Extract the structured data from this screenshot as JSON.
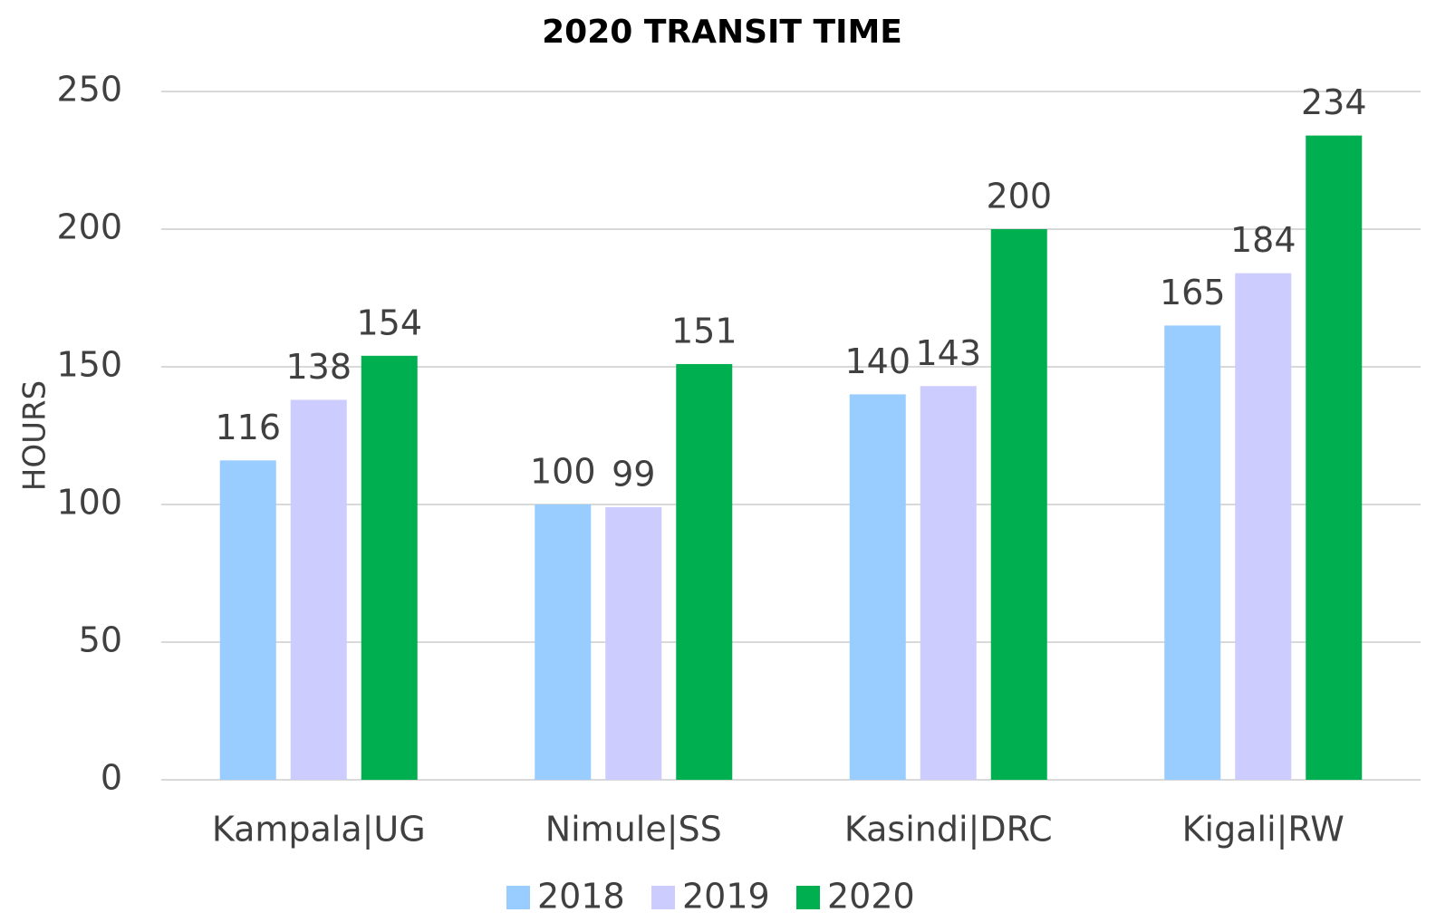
{
  "chart_data": {
    "type": "bar",
    "title": "2020 TRANSIT TIME",
    "y_label": "HOURS",
    "categories": [
      "Kampala|UG",
      "Nimule|SS",
      "Kasindi|DRC",
      "Kigali|RW"
    ],
    "series": [
      {
        "name": "2018",
        "color": "#99ccff",
        "values": [
          116,
          100,
          140,
          165
        ]
      },
      {
        "name": "2019",
        "color": "#ccccff",
        "values": [
          138,
          99,
          143,
          184
        ]
      },
      {
        "name": "2020",
        "color": "#00b050",
        "values": [
          154,
          151,
          200,
          234
        ]
      }
    ],
    "ylim": [
      0,
      250
    ],
    "yticks": [
      0,
      50,
      100,
      150,
      200,
      250
    ],
    "grid": true,
    "legend": "bottom"
  }
}
